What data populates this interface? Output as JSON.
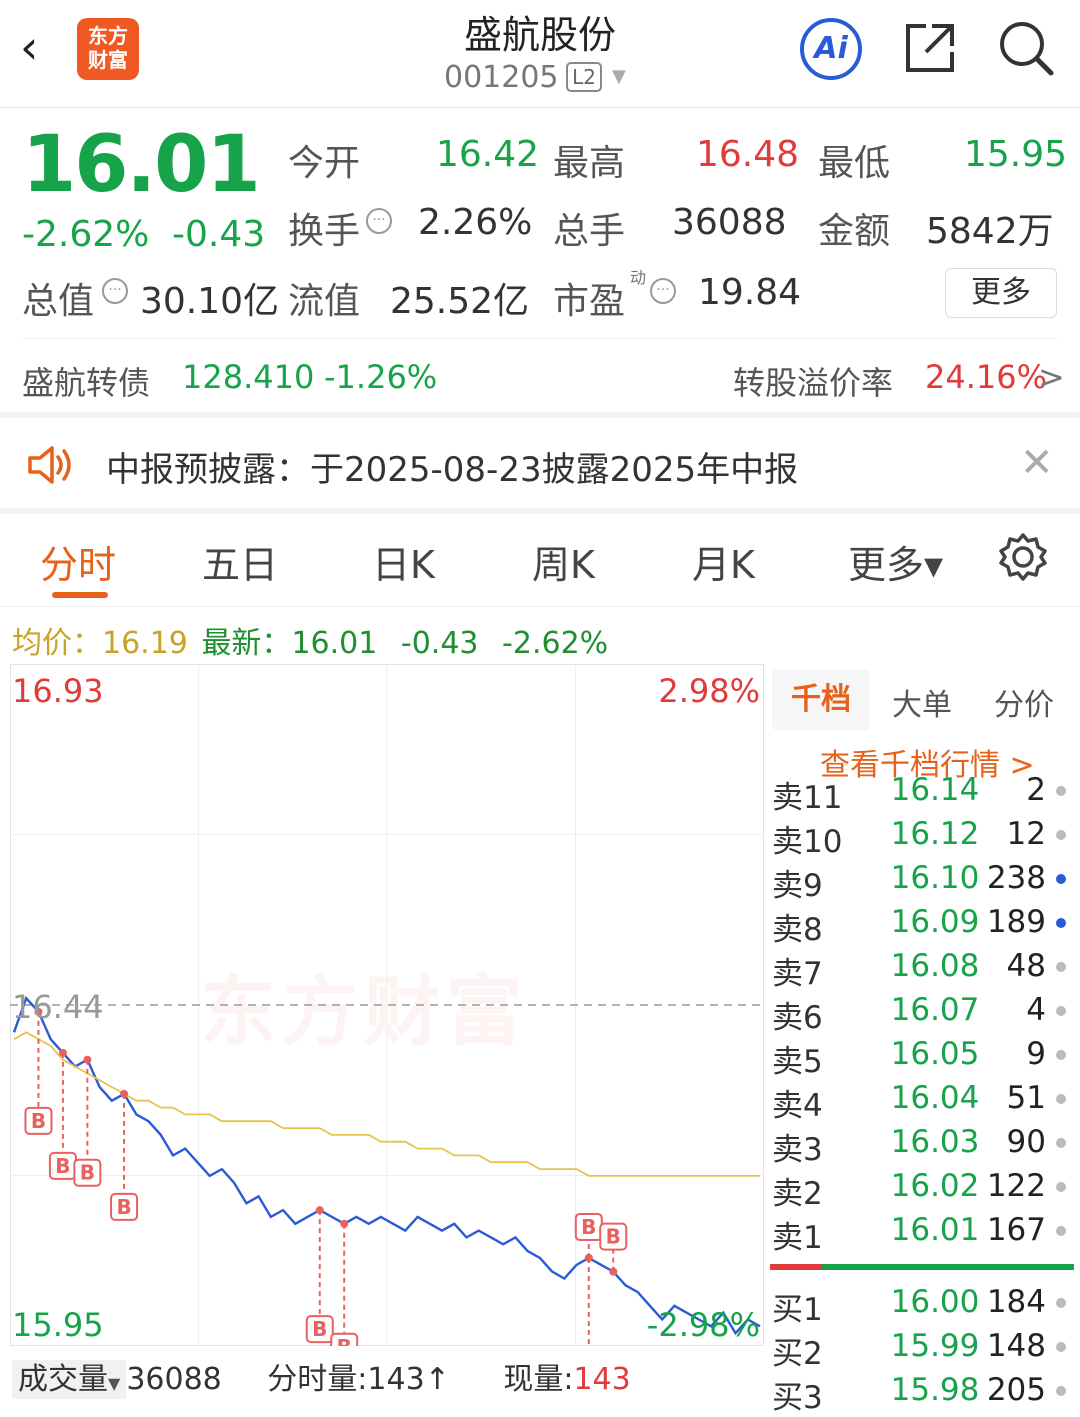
{
  "header": {
    "logo_text": "东方\n财富",
    "stock_name": "盛航股份",
    "stock_code": "001205",
    "level_badge": "L2",
    "ai_label": "Ai"
  },
  "quote": {
    "price": "16.01",
    "change_pct": "-2.62%",
    "change": "-0.43",
    "open_label": "今开",
    "open": "16.42",
    "high_label": "最高",
    "high": "16.48",
    "low_label": "最低",
    "low": "15.95",
    "turnover_label": "换手",
    "turnover": "2.26%",
    "volume_label": "总手",
    "volume": "36088",
    "amount_label": "金额",
    "amount": "5842万",
    "mktcap_label": "总值",
    "mktcap": "30.10亿",
    "float_label": "流值",
    "float": "25.52亿",
    "pe_label": "市盈",
    "pe_sup": "动",
    "pe": "19.84",
    "more_label": "更多"
  },
  "bond": {
    "name": "盛航转债",
    "price": "128.410",
    "change_pct": "-1.26%",
    "premium_label": "转股溢价率",
    "premium": "24.16%",
    "arrow": ">"
  },
  "notice": {
    "text": "中报预披露：于2025-08-23披露2025年中报"
  },
  "tabs": {
    "items": [
      "分时",
      "五日",
      "日K",
      "周K",
      "月K",
      "更多▾"
    ]
  },
  "summary": {
    "avg_label": "均价：",
    "avg": "16.19",
    "latest_label": "最新：",
    "latest": "16.01",
    "change": "-0.43",
    "change_pct": "-2.62%"
  },
  "chart_data": {
    "type": "line",
    "top_price_label": "16.93",
    "top_pct_label": "2.98%",
    "prev_close_label": "16.44",
    "bottom_price_label": "15.95",
    "bottom_pct_label": "-2.98%",
    "ylim": [
      15.95,
      16.93
    ],
    "watermark": "东方财富",
    "trade_marker": "B",
    "series": [
      {
        "values": [
          16.4,
          16.45,
          16.43,
          16.39,
          16.37,
          16.35,
          16.36,
          16.32,
          16.3,
          16.31,
          16.28,
          16.27,
          16.25,
          16.22,
          16.23,
          16.21,
          16.19,
          16.2,
          16.18,
          16.15,
          16.16,
          16.13,
          16.14,
          16.12,
          16.13,
          16.14,
          16.13,
          16.12,
          16.13,
          16.12,
          16.13,
          16.12,
          16.11,
          16.13,
          16.12,
          16.11,
          16.12,
          16.1,
          16.11,
          16.1,
          16.09,
          16.1,
          16.08,
          16.07,
          16.05,
          16.04,
          16.06,
          16.07,
          16.06,
          16.05,
          16.03,
          16.02,
          16.0,
          15.98,
          16.0,
          15.99,
          15.98,
          15.97,
          15.99,
          15.96,
          15.98,
          15.97
        ]
      },
      {
        "values": [
          16.39,
          16.4,
          16.39,
          16.38,
          16.36,
          16.35,
          16.34,
          16.33,
          16.32,
          16.31,
          16.3,
          16.3,
          16.29,
          16.29,
          16.28,
          16.28,
          16.28,
          16.27,
          16.27,
          16.27,
          16.27,
          16.27,
          16.26,
          16.26,
          16.26,
          16.26,
          16.25,
          16.25,
          16.25,
          16.25,
          16.24,
          16.24,
          16.24,
          16.23,
          16.23,
          16.23,
          16.22,
          16.22,
          16.22,
          16.21,
          16.21,
          16.21,
          16.21,
          16.2,
          16.2,
          16.2,
          16.2,
          16.19,
          16.19,
          16.19,
          16.19,
          16.19,
          16.19,
          16.19,
          16.19,
          16.19,
          16.19,
          16.19,
          16.19,
          16.19,
          16.19,
          16.19
        ]
      }
    ]
  },
  "volume_bar": {
    "label": "成交量",
    "total": "36088",
    "period_label": "分时量:",
    "period": "143",
    "period_arrow": "↑",
    "now_label": "现量:",
    "now": "143"
  },
  "order_book": {
    "tabs": [
      "千档",
      "大单",
      "分价"
    ],
    "link": "查看千档行情 >",
    "asks": [
      {
        "level": "卖11",
        "price": "16.14",
        "vol": "2",
        "dot": "gray"
      },
      {
        "level": "卖10",
        "price": "16.12",
        "vol": "12",
        "dot": "gray"
      },
      {
        "level": "卖9",
        "price": "16.10",
        "vol": "238",
        "dot": "blue"
      },
      {
        "level": "卖8",
        "price": "16.09",
        "vol": "189",
        "dot": "blue"
      },
      {
        "level": "卖7",
        "price": "16.08",
        "vol": "48",
        "dot": "gray"
      },
      {
        "level": "卖6",
        "price": "16.07",
        "vol": "4",
        "dot": "gray"
      },
      {
        "level": "卖5",
        "price": "16.05",
        "vol": "9",
        "dot": "gray"
      },
      {
        "level": "卖4",
        "price": "16.04",
        "vol": "51",
        "dot": "gray"
      },
      {
        "level": "卖3",
        "price": "16.03",
        "vol": "90",
        "dot": "gray"
      },
      {
        "level": "卖2",
        "price": "16.02",
        "vol": "122",
        "dot": "gray"
      },
      {
        "level": "卖1",
        "price": "16.01",
        "vol": "167",
        "dot": "gray"
      }
    ],
    "bids": [
      {
        "level": "买1",
        "price": "16.00",
        "vol": "184",
        "dot": "gray"
      },
      {
        "level": "买2",
        "price": "15.99",
        "vol": "148",
        "dot": "gray"
      },
      {
        "level": "买3",
        "price": "15.98",
        "vol": "205",
        "dot": "gray"
      }
    ]
  },
  "colors": {
    "down": "#17a34a",
    "up": "#e03a3a",
    "accent": "#e8611a",
    "price_line": "#2a5bd7",
    "avg_line": "#e8c34a"
  }
}
